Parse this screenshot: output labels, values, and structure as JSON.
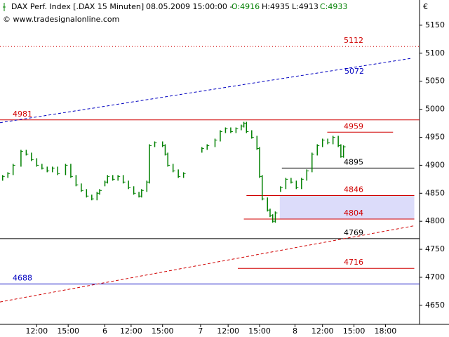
{
  "chart_data": {
    "type": "price",
    "header": {
      "instrument": "DAX Perf. Index [.DAX  15 Minuten]",
      "datetime": "08.05.2009 15:00:00 -",
      "open": "O:4916",
      "high": "H:4935",
      "low": "L:4913",
      "close": "C:4933"
    },
    "copyright": "© www.tradesignalonline.com",
    "currency": "€",
    "color": "#008000",
    "xlim": [
      0,
      160
    ],
    "ylim": [
      4616,
      5195
    ],
    "yticks": [
      4650,
      4700,
      4750,
      4800,
      4850,
      4900,
      4950,
      5000,
      5050,
      5100,
      5150
    ],
    "xticks": [
      {
        "value": 14,
        "label": "12:00"
      },
      {
        "value": 26,
        "label": "15:00"
      },
      {
        "value": 40,
        "label": "6"
      },
      {
        "value": 50,
        "label": "12:00"
      },
      {
        "value": 62,
        "label": "15:00"
      },
      {
        "value": 76.5,
        "label": "7"
      },
      {
        "value": 87,
        "label": "12:00"
      },
      {
        "value": 99,
        "label": "15:00"
      },
      {
        "value": 112.5,
        "label": "8"
      },
      {
        "value": 123,
        "label": "12:00"
      },
      {
        "value": 135,
        "label": "15:00"
      },
      {
        "value": 147,
        "label": "18:00"
      }
    ],
    "x": [
      1,
      3,
      5,
      8,
      10,
      12,
      14,
      16,
      18,
      20,
      22,
      25,
      27,
      29,
      31,
      33,
      35,
      37,
      38,
      null,
      40,
      41,
      43,
      45,
      47,
      49,
      51,
      53,
      54,
      56,
      57,
      59,
      62,
      63,
      64,
      66,
      68,
      70,
      null,
      77,
      79,
      82,
      84,
      86,
      88,
      90,
      92,
      93,
      94,
      96,
      98,
      99,
      100,
      102,
      103,
      104,
      105,
      null,
      107,
      109,
      111,
      113,
      115,
      117,
      119,
      121,
      123,
      125,
      127,
      129,
      130,
      131
    ],
    "values": [
      4880,
      4885,
      4900,
      4925,
      4920,
      4910,
      4900,
      4895,
      4890,
      4895,
      4885,
      4900,
      4880,
      4865,
      4855,
      4845,
      4840,
      4850,
      4855,
      null,
      4870,
      4880,
      4875,
      4880,
      4870,
      4860,
      4850,
      4845,
      4855,
      4870,
      4935,
      4940,
      4935,
      4920,
      4900,
      4890,
      4880,
      4885,
      null,
      4930,
      4935,
      4945,
      4960,
      4965,
      4960,
      4965,
      4970,
      4975,
      4960,
      4950,
      4930,
      4880,
      4840,
      4820,
      4810,
      4800,
      4815,
      null,
      4860,
      4875,
      4870,
      4860,
      4875,
      4890,
      4920,
      4935,
      4945,
      4940,
      4950,
      4935,
      4916,
      4933
    ],
    "levels": [
      {
        "value": 5112,
        "color": "#d00000",
        "style": "dotted",
        "span": [
          0,
          160
        ],
        "label_side": "right"
      },
      {
        "value": 4981,
        "color": "#d00000",
        "style": "solid",
        "span": [
          0,
          160
        ],
        "label_side": "left"
      },
      {
        "value": 4959,
        "color": "#d00000",
        "style": "solid",
        "span": [
          124.8,
          149.9
        ],
        "label_side": "right"
      },
      {
        "value": 4895,
        "color": "#000000",
        "style": "solid",
        "span": [
          107.5,
          158
        ],
        "label_side": "right"
      },
      {
        "value": 4846,
        "color": "#d00000",
        "style": "solid",
        "span": [
          94,
          158
        ],
        "label_side": "right"
      },
      {
        "value": 4804,
        "color": "#d00000",
        "style": "solid",
        "span": [
          93,
          158
        ],
        "label_side": "right"
      },
      {
        "value": 4769,
        "color": "#000000",
        "style": "solid",
        "span": [
          0,
          160
        ],
        "label_side": "right"
      },
      {
        "value": 4716,
        "color": "#d00000",
        "style": "solid",
        "span": [
          90.7,
          158
        ],
        "label_side": "right"
      },
      {
        "value": 4688,
        "color": "#0000c0",
        "style": "solid",
        "span": [
          0,
          160
        ],
        "label_side": "left"
      }
    ],
    "zone": {
      "from": 4804,
      "to": 4846,
      "span": [
        106.7,
        158
      ],
      "color": "#dcdcfa"
    },
    "trendlines": [
      {
        "label": "5072",
        "values": [
          4976,
          5091
        ],
        "span": [
          0,
          157
        ],
        "color": "#0000c0"
      },
      {
        "values": [
          4656,
          4792
        ],
        "span": [
          0,
          158
        ],
        "color": "#d00000"
      }
    ]
  }
}
